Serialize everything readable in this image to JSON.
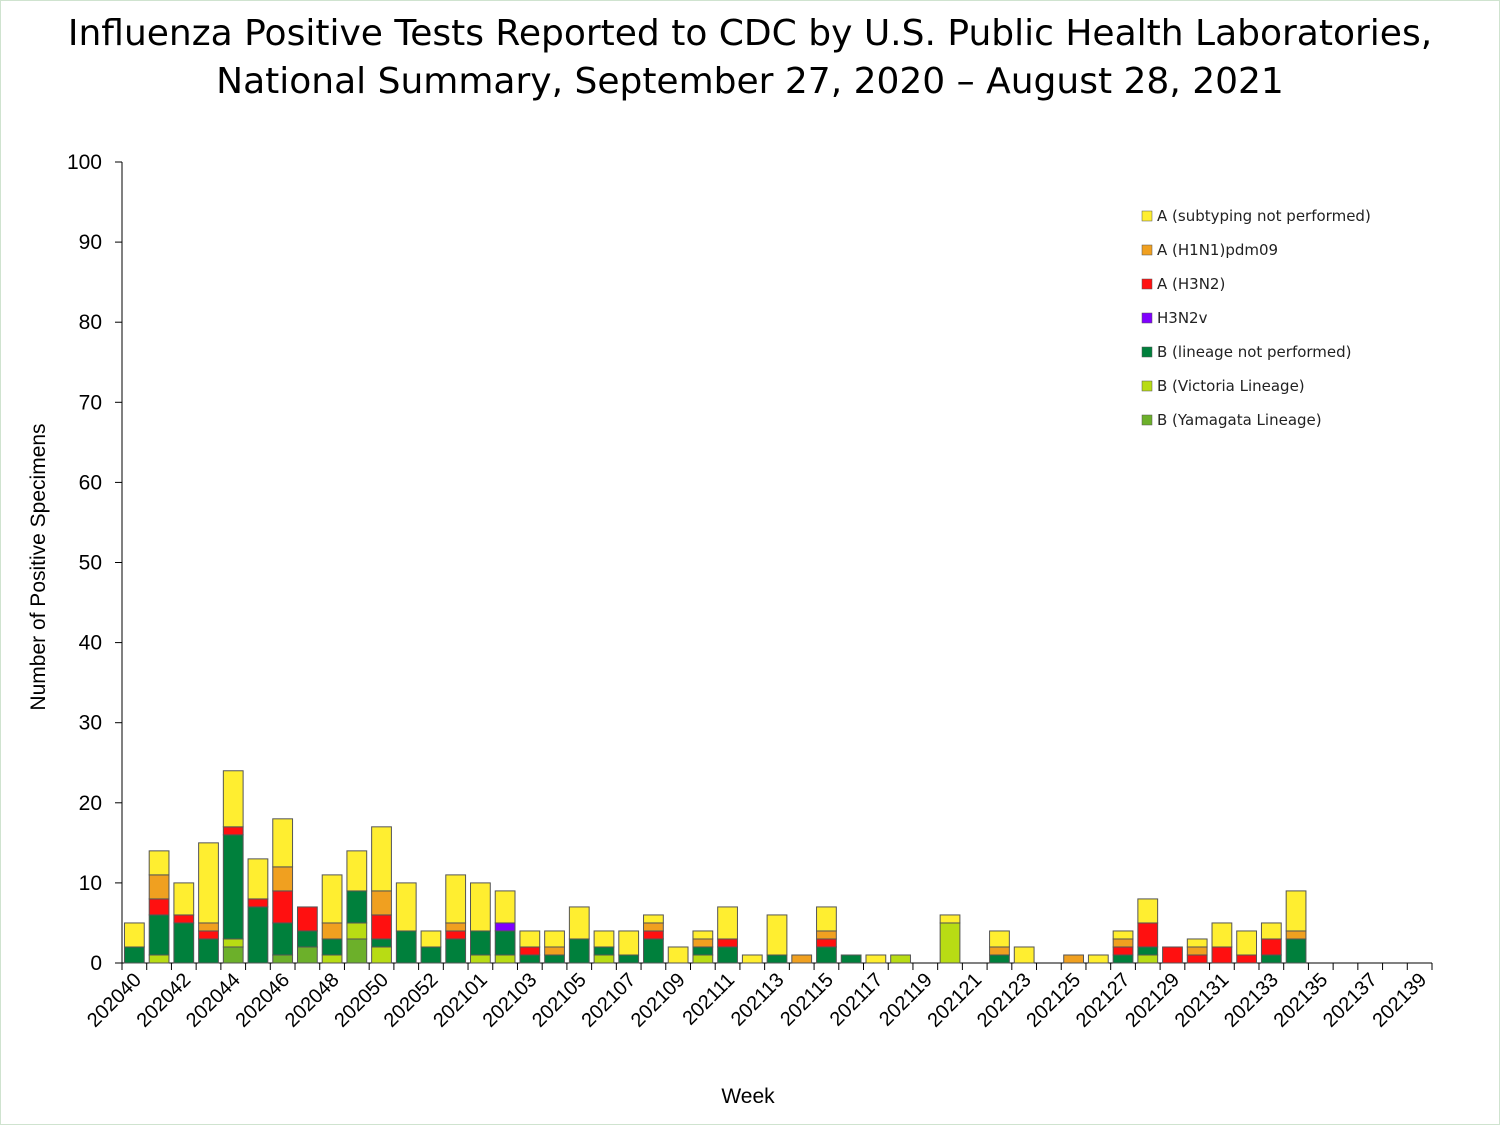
{
  "chart_data": {
    "type": "bar",
    "stacked": true,
    "title": "Influenza Positive Tests Reported to CDC by U.S. Public Health Laboratories, National Summary, September 27, 2020 – August 28, 2021",
    "title_lines": [
      "Influenza Positive Tests Reported to CDC by U.S. Public Health Laboratories,",
      "National Summary, September 27, 2020 – August 28, 2021"
    ],
    "xlabel": "Week",
    "ylabel": "Number of Positive Specimens",
    "ylim": [
      0,
      100
    ],
    "yticks": [
      0,
      10,
      20,
      30,
      40,
      50,
      60,
      70,
      80,
      90,
      100
    ],
    "grid": false,
    "legend_position": "top-right",
    "categories": [
      "202040",
      "202041",
      "202042",
      "202043",
      "202044",
      "202045",
      "202046",
      "202047",
      "202048",
      "202049",
      "202050",
      "202051",
      "202052",
      "202053",
      "202101",
      "202102",
      "202103",
      "202104",
      "202105",
      "202106",
      "202107",
      "202108",
      "202109",
      "202110",
      "202111",
      "202112",
      "202113",
      "202114",
      "202115",
      "202116",
      "202117",
      "202118",
      "202119",
      "202120",
      "202121",
      "202122",
      "202123",
      "202124",
      "202125",
      "202126",
      "202127",
      "202128",
      "202129",
      "202130",
      "202131",
      "202132",
      "202133",
      "202134",
      "202135",
      "202136",
      "202137",
      "202138",
      "202139"
    ],
    "xtick_labels": [
      "202040",
      "202042",
      "202044",
      "202046",
      "202048",
      "202050",
      "202052",
      "202101",
      "202103",
      "202105",
      "202107",
      "202109",
      "202111",
      "202113",
      "202115",
      "202117",
      "202119",
      "202121",
      "202123",
      "202125",
      "202127",
      "202129",
      "202131",
      "202133",
      "202135",
      "202137",
      "202139"
    ],
    "series": [
      {
        "name": "B (Yamagata Lineage)",
        "color": "#6cb02a",
        "values": [
          0,
          0,
          0,
          0,
          2,
          0,
          1,
          2,
          0,
          3,
          0,
          0,
          0,
          0,
          0,
          0,
          0,
          0,
          0,
          0,
          0,
          0,
          0,
          0,
          0,
          0,
          0,
          0,
          0,
          0,
          0,
          0,
          0,
          0,
          0,
          0,
          0,
          0,
          0,
          0,
          0,
          0,
          0,
          0,
          0,
          0,
          0,
          0,
          0,
          0,
          0,
          0,
          0
        ]
      },
      {
        "name": "B (Victoria Lineage)",
        "color": "#b8dc14",
        "values": [
          0,
          1,
          0,
          0,
          1,
          0,
          0,
          0,
          1,
          2,
          2,
          0,
          0,
          0,
          1,
          1,
          0,
          0,
          0,
          1,
          0,
          0,
          0,
          1,
          0,
          0,
          0,
          0,
          0,
          0,
          0,
          1,
          0,
          5,
          0,
          0,
          0,
          0,
          0,
          0,
          0,
          1,
          0,
          0,
          0,
          0,
          0,
          0,
          0,
          0,
          0,
          0,
          0
        ]
      },
      {
        "name": "B (lineage not performed)",
        "color": "#00803c",
        "values": [
          2,
          5,
          5,
          3,
          13,
          7,
          4,
          2,
          2,
          4,
          1,
          4,
          2,
          3,
          3,
          3,
          1,
          1,
          3,
          1,
          1,
          3,
          0,
          1,
          2,
          0,
          1,
          0,
          2,
          1,
          0,
          0,
          0,
          0,
          0,
          1,
          0,
          0,
          0,
          0,
          1,
          1,
          0,
          0,
          0,
          0,
          1,
          3,
          0,
          0,
          0,
          0,
          0
        ]
      },
      {
        "name": "H3N2v",
        "color": "#8000ff",
        "values": [
          0,
          0,
          0,
          0,
          0,
          0,
          0,
          0,
          0,
          0,
          0,
          0,
          0,
          0,
          0,
          1,
          0,
          0,
          0,
          0,
          0,
          0,
          0,
          0,
          0,
          0,
          0,
          0,
          0,
          0,
          0,
          0,
          0,
          0,
          0,
          0,
          0,
          0,
          0,
          0,
          0,
          0,
          0,
          0,
          0,
          0,
          0,
          0,
          0,
          0,
          0,
          0,
          0
        ]
      },
      {
        "name": "A (H3N2)",
        "color": "#ff1010",
        "values": [
          0,
          2,
          1,
          1,
          1,
          1,
          4,
          3,
          0,
          0,
          3,
          0,
          0,
          1,
          0,
          0,
          1,
          0,
          0,
          0,
          0,
          1,
          0,
          0,
          1,
          0,
          0,
          0,
          1,
          0,
          0,
          0,
          0,
          0,
          0,
          0,
          0,
          0,
          0,
          0,
          1,
          3,
          2,
          1,
          2,
          1,
          2,
          0,
          0,
          0,
          0,
          0,
          0
        ]
      },
      {
        "name": "A (H1N1)pdm09",
        "color": "#f0a020",
        "values": [
          0,
          3,
          0,
          1,
          0,
          0,
          3,
          0,
          2,
          0,
          3,
          0,
          0,
          1,
          0,
          0,
          0,
          1,
          0,
          0,
          0,
          1,
          0,
          1,
          0,
          0,
          0,
          1,
          1,
          0,
          0,
          0,
          0,
          0,
          0,
          1,
          0,
          0,
          1,
          0,
          1,
          0,
          0,
          1,
          0,
          0,
          0,
          1,
          0,
          0,
          0,
          0,
          0
        ]
      },
      {
        "name": "A (subtyping not performed)",
        "color": "#ffee30",
        "values": [
          3,
          3,
          4,
          10,
          7,
          5,
          6,
          0,
          6,
          5,
          8,
          6,
          2,
          6,
          6,
          4,
          2,
          2,
          4,
          2,
          3,
          1,
          2,
          1,
          4,
          1,
          5,
          0,
          3,
          0,
          1,
          0,
          0,
          1,
          0,
          2,
          2,
          0,
          0,
          1,
          1,
          3,
          0,
          1,
          3,
          3,
          2,
          5,
          0,
          0,
          0,
          0,
          0
        ]
      }
    ]
  }
}
